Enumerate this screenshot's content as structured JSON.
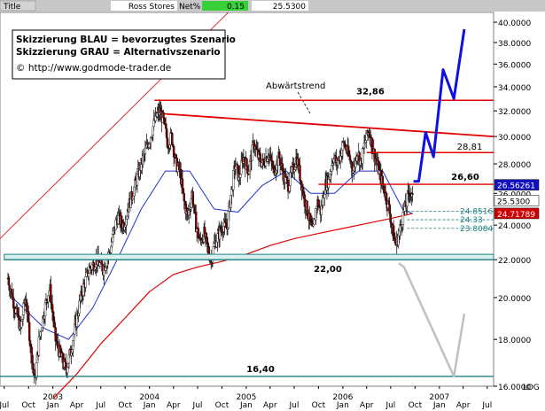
{
  "header": {
    "title_label": "Title",
    "instrument": "Ross Stores",
    "change_label": "Net%",
    "change_value": "0.15",
    "last_price": "25.5300"
  },
  "legend": {
    "line1": "Skizzierung BLAU = bevorzugtes Szenario",
    "line2": "Skizzierung GRAU = Alternativszenario",
    "url": "© http://www.godmode-trader.de"
  },
  "chart_data": {
    "type": "candlestick",
    "scale": "log",
    "axis_label": "LOG",
    "ylim": [
      16.0,
      41.0
    ],
    "yticks": [
      16,
      18,
      20,
      22,
      24,
      26,
      28,
      30,
      32,
      34,
      36,
      38,
      40
    ],
    "ytick_labels": [
      "16.0000",
      "18.0000",
      "20.0000",
      "22.0000",
      "24.0000",
      "26.0000",
      "28.0000",
      "30.0000",
      "32.0000",
      "34.0000",
      "36.0000",
      "38.0000",
      "40.0000"
    ],
    "xlim": [
      "2002-06-15",
      "2007-07-25"
    ],
    "month_ticks": [
      {
        "date": "2002-07-01",
        "label": "Jul"
      },
      {
        "date": "2002-10-01",
        "label": "Oct"
      },
      {
        "date": "2003-01-01",
        "label": "Jan"
      },
      {
        "date": "2003-04-01",
        "label": "Apr"
      },
      {
        "date": "2003-07-01",
        "label": "Jul"
      },
      {
        "date": "2003-10-01",
        "label": "Oct"
      },
      {
        "date": "2004-01-01",
        "label": "Jan"
      },
      {
        "date": "2004-04-01",
        "label": "Apr"
      },
      {
        "date": "2004-07-01",
        "label": "Jul"
      },
      {
        "date": "2004-10-01",
        "label": "Oct"
      },
      {
        "date": "2005-01-01",
        "label": "Jan"
      },
      {
        "date": "2005-04-01",
        "label": "Apr"
      },
      {
        "date": "2005-07-01",
        "label": "Jul"
      },
      {
        "date": "2005-10-01",
        "label": "Oct"
      },
      {
        "date": "2006-01-01",
        "label": "Jan"
      },
      {
        "date": "2006-04-01",
        "label": "Apr"
      },
      {
        "date": "2006-07-01",
        "label": "Jul"
      },
      {
        "date": "2006-10-01",
        "label": "Oct"
      },
      {
        "date": "2007-01-01",
        "label": "Jan"
      },
      {
        "date": "2007-04-01",
        "label": "Apr"
      },
      {
        "date": "2007-07-01",
        "label": "Jul"
      }
    ],
    "year_ticks": [
      {
        "date": "2003-01-01",
        "label": "2003"
      },
      {
        "date": "2004-01-01",
        "label": "2004"
      },
      {
        "date": "2005-01-01",
        "label": "2005"
      },
      {
        "date": "2006-01-01",
        "label": "2006"
      },
      {
        "date": "2007-01-01",
        "label": "2007"
      }
    ],
    "price_path": [
      [
        "2002-07-15",
        21.0
      ],
      [
        "2002-08-10",
        19.5
      ],
      [
        "2002-09-01",
        18.5
      ],
      [
        "2002-09-20",
        20.0
      ],
      [
        "2002-10-10",
        17.5
      ],
      [
        "2002-10-25",
        16.2
      ],
      [
        "2002-11-10",
        18.0
      ],
      [
        "2002-12-01",
        19.5
      ],
      [
        "2002-12-20",
        20.5
      ],
      [
        "2003-01-10",
        18.0
      ],
      [
        "2003-02-01",
        17.2
      ],
      [
        "2003-02-20",
        16.7
      ],
      [
        "2003-03-10",
        17.5
      ],
      [
        "2003-04-01",
        19.0
      ],
      [
        "2003-04-25",
        20.5
      ],
      [
        "2003-05-20",
        21.5
      ],
      [
        "2003-06-15",
        22.0
      ],
      [
        "2003-07-10",
        21.5
      ],
      [
        "2003-08-05",
        22.5
      ],
      [
        "2003-09-01",
        24.5
      ],
      [
        "2003-09-25",
        24.0
      ],
      [
        "2003-10-20",
        25.5
      ],
      [
        "2003-11-15",
        27.0
      ],
      [
        "2003-12-10",
        28.5
      ],
      [
        "2004-01-05",
        30.0
      ],
      [
        "2004-01-25",
        31.5
      ],
      [
        "2004-02-10",
        32.0
      ],
      [
        "2004-02-25",
        31.0
      ],
      [
        "2004-03-10",
        29.5
      ],
      [
        "2004-03-25",
        30.0
      ],
      [
        "2004-04-10",
        28.0
      ],
      [
        "2004-04-25",
        27.5
      ],
      [
        "2004-05-10",
        25.5
      ],
      [
        "2004-05-25",
        24.5
      ],
      [
        "2004-06-10",
        26.0
      ],
      [
        "2004-06-25",
        24.0
      ],
      [
        "2004-07-10",
        23.0
      ],
      [
        "2004-07-25",
        23.5
      ],
      [
        "2004-08-10",
        22.5
      ],
      [
        "2004-08-20",
        22.0
      ],
      [
        "2004-09-05",
        23.0
      ],
      [
        "2004-09-20",
        23.5
      ],
      [
        "2004-10-05",
        24.0
      ],
      [
        "2004-10-20",
        23.8
      ],
      [
        "2004-11-05",
        26.0
      ],
      [
        "2004-11-20",
        28.0
      ],
      [
        "2004-12-05",
        27.0
      ],
      [
        "2004-12-20",
        28.5
      ],
      [
        "2005-01-10",
        27.5
      ],
      [
        "2005-01-30",
        29.5
      ],
      [
        "2005-02-15",
        28.5
      ],
      [
        "2005-03-05",
        28.0
      ],
      [
        "2005-03-25",
        28.8
      ],
      [
        "2005-04-15",
        27.5
      ],
      [
        "2005-05-05",
        28.5
      ],
      [
        "2005-05-25",
        27.0
      ],
      [
        "2005-06-10",
        26.5
      ],
      [
        "2005-06-25",
        27.5
      ],
      [
        "2005-07-10",
        28.5
      ],
      [
        "2005-07-25",
        27.0
      ],
      [
        "2005-08-10",
        25.5
      ],
      [
        "2005-08-25",
        24.5
      ],
      [
        "2005-09-10",
        23.5
      ],
      [
        "2005-09-25",
        25.5
      ],
      [
        "2005-10-10",
        24.8
      ],
      [
        "2005-10-25",
        26.5
      ],
      [
        "2005-11-10",
        27.0
      ],
      [
        "2005-11-25",
        28.5
      ],
      [
        "2005-12-10",
        28.0
      ],
      [
        "2006-01-05",
        29.5
      ],
      [
        "2006-01-25",
        28.5
      ],
      [
        "2006-02-10",
        27.5
      ],
      [
        "2006-02-25",
        29.0
      ],
      [
        "2006-03-10",
        28.0
      ],
      [
        "2006-03-25",
        29.5
      ],
      [
        "2006-04-10",
        30.5
      ],
      [
        "2006-04-25",
        29.0
      ],
      [
        "2006-05-10",
        28.0
      ],
      [
        "2006-05-25",
        27.0
      ],
      [
        "2006-06-10",
        26.0
      ],
      [
        "2006-06-25",
        25.0
      ],
      [
        "2006-07-10",
        23.5
      ],
      [
        "2006-07-20",
        22.8
      ],
      [
        "2006-08-01",
        23.5
      ],
      [
        "2006-08-15",
        24.5
      ],
      [
        "2006-08-28",
        25.3
      ],
      [
        "2006-09-10",
        26.3
      ],
      [
        "2006-09-22",
        25.53
      ]
    ],
    "lines": {
      "downtrend": {
        "label": "Abwärtstrend",
        "from": [
          "2004-02-01",
          31.8
        ],
        "to": [
          "2007-07-25",
          30.0
        ]
      },
      "upper_channel": {
        "from": [
          "2002-06-15",
          23.2
        ],
        "to": [
          "2004-10-25",
          41.0
        ]
      },
      "ma_blue": [
        [
          "2002-08-01",
          20.0
        ],
        [
          "2002-12-01",
          18.5
        ],
        [
          "2003-03-01",
          18.0
        ],
        [
          "2003-06-01",
          19.5
        ],
        [
          "2003-09-01",
          22.0
        ],
        [
          "2003-12-01",
          25.0
        ],
        [
          "2004-03-01",
          27.5
        ],
        [
          "2004-06-01",
          27.5
        ],
        [
          "2004-09-01",
          25.0
        ],
        [
          "2004-12-01",
          24.8
        ],
        [
          "2005-03-01",
          26.5
        ],
        [
          "2005-06-01",
          27.5
        ],
        [
          "2005-09-01",
          26.0
        ],
        [
          "2005-12-01",
          26.0
        ],
        [
          "2006-03-01",
          27.5
        ],
        [
          "2006-06-01",
          27.5
        ],
        [
          "2006-08-15",
          25.0
        ],
        [
          "2006-09-22",
          24.7
        ]
      ],
      "ma_red": [
        [
          "2003-01-01",
          15.5
        ],
        [
          "2003-04-01",
          16.5
        ],
        [
          "2003-07-01",
          17.8
        ],
        [
          "2003-10-01",
          19.0
        ],
        [
          "2004-01-01",
          20.3
        ],
        [
          "2004-04-01",
          21.2
        ],
        [
          "2004-07-01",
          21.6
        ],
        [
          "2004-10-01",
          21.9
        ],
        [
          "2005-01-01",
          22.3
        ],
        [
          "2005-04-01",
          22.8
        ],
        [
          "2005-07-01",
          23.2
        ],
        [
          "2005-10-01",
          23.5
        ],
        [
          "2006-01-01",
          23.8
        ],
        [
          "2006-04-01",
          24.1
        ],
        [
          "2006-07-01",
          24.4
        ],
        [
          "2006-09-22",
          24.71789
        ]
      ],
      "scenario_blue": [
        [
          "2006-09-25",
          26.8
        ],
        [
          "2006-10-15",
          26.8
        ],
        [
          "2006-11-10",
          30.3
        ],
        [
          "2006-12-10",
          28.5
        ],
        [
          "2007-01-15",
          35.5
        ],
        [
          "2007-02-25",
          33.0
        ],
        [
          "2007-04-05",
          39.3
        ]
      ],
      "scenario_grey": [
        [
          "2006-08-01",
          21.8
        ],
        [
          "2006-08-20",
          21.6
        ],
        [
          "2007-02-25",
          16.4
        ],
        [
          "2007-04-05",
          19.2
        ]
      ]
    },
    "levels": [
      {
        "value": 32.86,
        "label": "32,86",
        "color": "#e00000",
        "from": "2004-01-20"
      },
      {
        "value": 28.81,
        "label": "28,81",
        "color": "#e00000",
        "from": "2006-04-01"
      },
      {
        "value": 26.6,
        "label": "26,60",
        "color": "#e00000",
        "from": "2005-10-01"
      },
      {
        "value": 24.8516,
        "label": "24.8516",
        "color": "#208080",
        "from": "2006-09-01",
        "dashed": true
      },
      {
        "value": 24.33,
        "label": "24.33",
        "color": "#208080",
        "from": "2006-09-01",
        "dashed": true
      },
      {
        "value": 23.8084,
        "label": "23.8084",
        "color": "#208080",
        "from": "2006-09-01",
        "dashed": true
      },
      {
        "value": 22.0,
        "label": "22,00",
        "color": "#208080",
        "from": "2002-07-01",
        "band": 22.3
      },
      {
        "value": 16.4,
        "label": "16,40",
        "color": "#208080",
        "from": "2002-06-15"
      }
    ],
    "markers": [
      {
        "value": 26.56261,
        "label": "26.56261",
        "bg": "#1010c0",
        "fg": "#ffffff"
      },
      {
        "value": 25.53,
        "label": "25.5300",
        "bg": "#ffffff",
        "fg": "#000000"
      },
      {
        "value": 24.71789,
        "label": "24.71789",
        "bg": "#d00000",
        "fg": "#ffffff"
      }
    ]
  }
}
